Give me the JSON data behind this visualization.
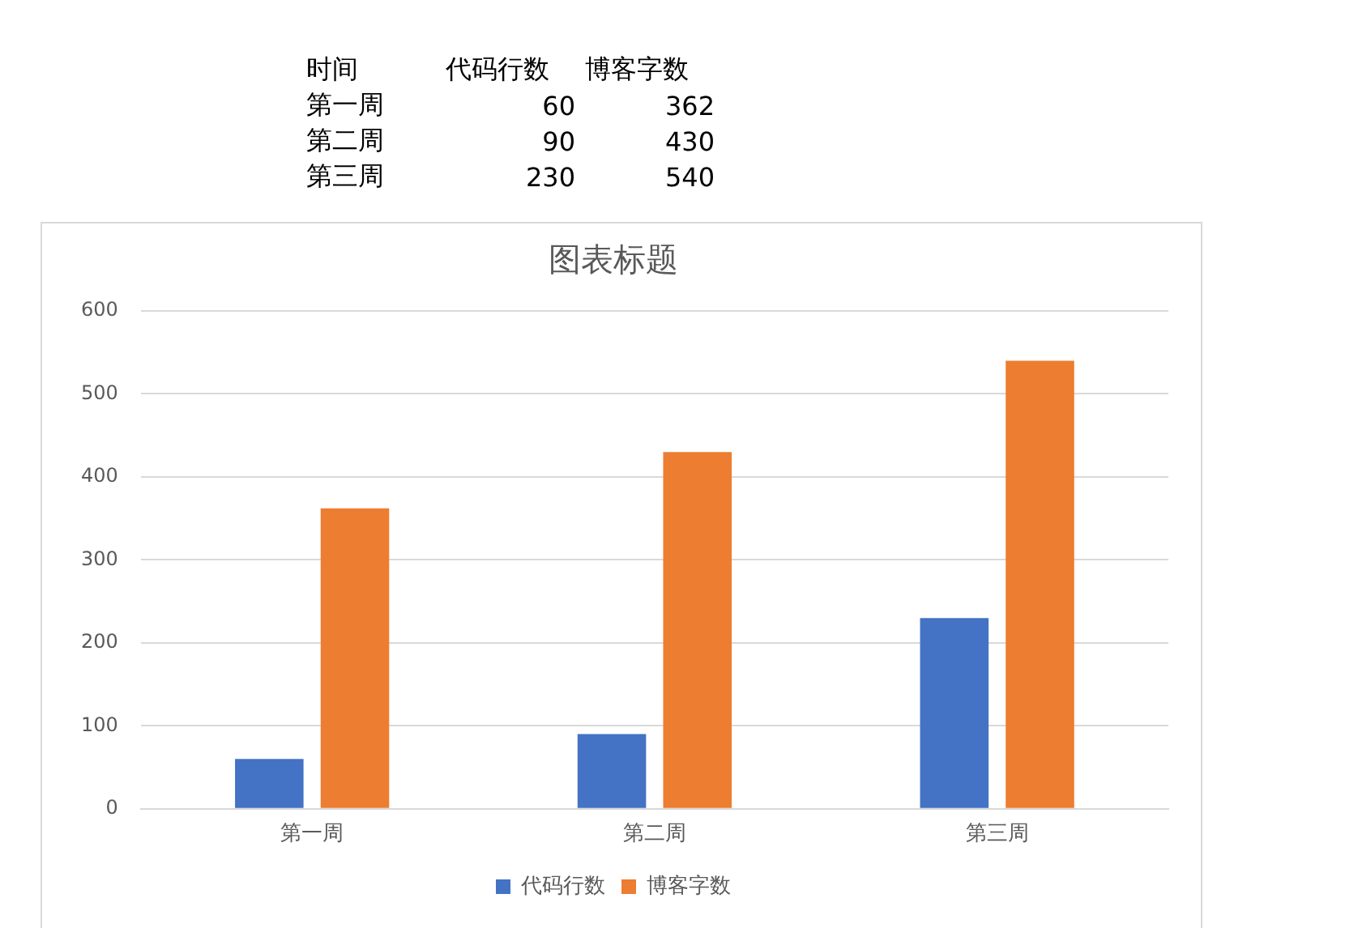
{
  "chart_data": [
    {
      "type": "other",
      "xlabel": "时间",
      "categories": [
        "第一周",
        "第二周",
        "第三周"
      ],
      "series": [
        {
          "name": "代码行数",
          "values": [
            60,
            90,
            230
          ]
        },
        {
          "name": "博客字数",
          "values": [
            362,
            430,
            540
          ]
        }
      ],
      "data_labels": true
    },
    {
      "type": "bar",
      "title": "图表标题",
      "categories": [
        "第一周",
        "第二周",
        "第三周"
      ],
      "series": [
        {
          "name": "代码行数",
          "color": "#4472c4",
          "values": [
            60,
            90,
            230
          ]
        },
        {
          "name": "博客字数",
          "color": "#ed7d31",
          "values": [
            362,
            430,
            540
          ]
        }
      ],
      "ylim": [
        0,
        600
      ],
      "yticks": [
        0,
        100,
        200,
        300,
        400,
        500,
        600
      ],
      "grid": "y",
      "legend": "bottom"
    }
  ]
}
